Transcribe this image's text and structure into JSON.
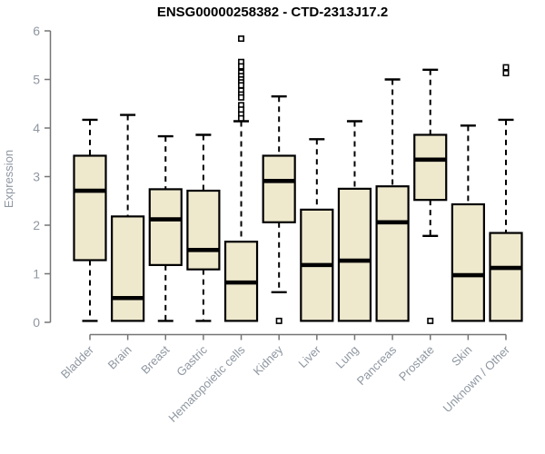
{
  "page": {
    "background": "#ffffff"
  },
  "chart_data": {
    "type": "boxplot",
    "title": "ENSG00000258382 - CTD-2313J17.2",
    "xlabel": "",
    "ylabel": "Expression",
    "ylim": [
      0,
      6
    ],
    "yticks": [
      0,
      1,
      2,
      3,
      4,
      5,
      6
    ],
    "grid": false,
    "legend": "none",
    "x_label_rotation_deg": 45,
    "categories": [
      "Bladder",
      "Brain",
      "Breast",
      "Gastric",
      "Hematopoietic cells",
      "Kidney",
      "Liver",
      "Lung",
      "Pancreas",
      "Prostate",
      "Skin",
      "Unknown / Other"
    ],
    "boxes": [
      {
        "category": "Bladder",
        "low": 0.03,
        "q1": 1.28,
        "median": 2.71,
        "q3": 3.43,
        "high": 4.17,
        "outliers": []
      },
      {
        "category": "Brain",
        "low": 0.03,
        "q1": 0.03,
        "median": 0.5,
        "q3": 2.18,
        "high": 4.27,
        "outliers": []
      },
      {
        "category": "Breast",
        "low": 0.03,
        "q1": 1.18,
        "median": 2.12,
        "q3": 2.74,
        "high": 3.83,
        "outliers": []
      },
      {
        "category": "Gastric",
        "low": 0.03,
        "q1": 1.09,
        "median": 1.49,
        "q3": 2.71,
        "high": 3.86,
        "outliers": []
      },
      {
        "category": "Hematopoietic cells",
        "low": 0.03,
        "q1": 0.03,
        "median": 0.82,
        "q3": 1.66,
        "high": 4.14,
        "outliers": [
          5.84,
          5.36,
          5.27,
          5.14,
          5.07,
          5.0,
          4.94,
          4.88,
          4.77,
          4.69,
          4.63,
          4.47,
          4.38,
          4.28,
          4.2
        ]
      },
      {
        "category": "Kidney",
        "low": 0.62,
        "q1": 2.06,
        "median": 2.91,
        "q3": 3.43,
        "high": 4.65,
        "outliers": [
          0.03
        ]
      },
      {
        "category": "Liver",
        "low": 0.03,
        "q1": 0.03,
        "median": 1.18,
        "q3": 2.32,
        "high": 3.77,
        "outliers": []
      },
      {
        "category": "Lung",
        "low": 0.03,
        "q1": 0.03,
        "median": 1.27,
        "q3": 2.75,
        "high": 4.14,
        "outliers": []
      },
      {
        "category": "Pancreas",
        "low": 0.03,
        "q1": 0.03,
        "median": 2.06,
        "q3": 2.8,
        "high": 5.0,
        "outliers": []
      },
      {
        "category": "Prostate",
        "low": 1.78,
        "q1": 2.52,
        "median": 3.35,
        "q3": 3.86,
        "high": 5.2,
        "outliers": [
          0.03
        ]
      },
      {
        "category": "Skin",
        "low": 0.03,
        "q1": 0.03,
        "median": 0.97,
        "q3": 2.43,
        "high": 4.05,
        "outliers": []
      },
      {
        "category": "Unknown / Other",
        "low": 0.03,
        "q1": 0.03,
        "median": 1.12,
        "q3": 1.84,
        "high": 4.17,
        "outliers": [
          5.25,
          5.13
        ]
      }
    ],
    "colors": {
      "box_fill": "#EEE8CD",
      "box_border": "#000000",
      "median": "#000000",
      "whisker": "#000000",
      "outlier_fill": "#ffffff",
      "axis_line": "#757575",
      "tick_label": "#8F97A1",
      "title": "#000000"
    }
  }
}
